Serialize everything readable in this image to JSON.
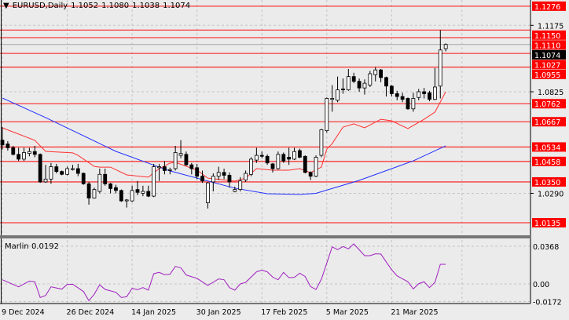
{
  "header": {
    "menu_icon": "triangle-down-icon",
    "symbol": "EURUSD,Daily",
    "open": "1.1052",
    "high": "1.1080",
    "low": "1.1038",
    "close": "1.1074"
  },
  "indicator": {
    "label": "Marlin 0.0192",
    "axis_labels": [
      "0.0368",
      "0.00",
      "-0.0172"
    ],
    "axis_values": [
      0.0368,
      0.0,
      -0.0172
    ],
    "line_color": "#a020c0",
    "points": [
      [
        0,
        0.0041
      ],
      [
        3,
        -0.0028
      ],
      [
        5,
        0.0028
      ],
      [
        6,
        0.0021
      ],
      [
        7,
        -0.0133
      ],
      [
        8,
        -0.0113
      ],
      [
        9,
        -0.0028
      ],
      [
        11,
        -0.0051
      ],
      [
        12,
        -0.0005
      ],
      [
        13,
        -0.0003
      ],
      [
        15,
        -0.0074
      ],
      [
        16,
        -0.0164
      ],
      [
        17,
        -0.01
      ],
      [
        18,
        -0.0008
      ],
      [
        19,
        -0.0054
      ],
      [
        21,
        -0.0082
      ],
      [
        22,
        -0.0133
      ],
      [
        23,
        -0.0125
      ],
      [
        24,
        -0.0043
      ],
      [
        25,
        -0.0056
      ],
      [
        26,
        -0.0036
      ],
      [
        27,
        -0.0061
      ],
      [
        28,
        0.01
      ],
      [
        29,
        0.0113
      ],
      [
        30,
        0.009
      ],
      [
        31,
        0.0095
      ],
      [
        32,
        0.0171
      ],
      [
        33,
        0.0158
      ],
      [
        34,
        0.0087
      ],
      [
        36,
        0.0054
      ],
      [
        38,
        -0.0015
      ],
      [
        40,
        0.0049
      ],
      [
        41,
        0.0041
      ],
      [
        42,
        -0.0036
      ],
      [
        43,
        -0.0061
      ],
      [
        44,
        0.0
      ],
      [
        45,
        0.0015
      ],
      [
        47,
        0.0118
      ],
      [
        48,
        0.0135
      ],
      [
        49,
        0.0118
      ],
      [
        50,
        0.0066
      ],
      [
        51,
        0.0041
      ],
      [
        52,
        0.0113
      ],
      [
        53,
        0.0061
      ],
      [
        54,
        0.0064
      ],
      [
        55,
        0.0105
      ],
      [
        56,
        0.0072
      ],
      [
        57,
        -0.0026
      ],
      [
        58,
        -0.0054
      ],
      [
        59,
        0.0046
      ],
      [
        61,
        0.0363
      ],
      [
        62,
        0.0335
      ],
      [
        63,
        0.0366
      ],
      [
        64,
        0.0343
      ],
      [
        65,
        0.0391
      ],
      [
        67,
        0.0276
      ],
      [
        68,
        0.0276
      ],
      [
        69,
        0.0294
      ],
      [
        70,
        0.0292
      ],
      [
        72,
        0.0138
      ],
      [
        73,
        0.0079
      ],
      [
        75,
        0.0021
      ],
      [
        76,
        -0.0049
      ],
      [
        77,
        0.0002
      ],
      [
        78,
        0.0021
      ],
      [
        79,
        -0.0036
      ],
      [
        80,
        0.0015
      ],
      [
        81,
        0.0192
      ],
      [
        82,
        0.0192
      ]
    ]
  },
  "chart_data": {
    "type": "candlestick",
    "symbol": "EURUSD",
    "timeframe": "Daily",
    "ylim": [
      1.0095,
      1.13
    ],
    "grid": true,
    "date_labels": [
      "9 Dec 2024",
      "26 Dec 2024",
      "14 Jan 2025",
      "30 Jan 2025",
      "17 Feb 2025",
      "5 Mar 2025",
      "21 Mar 2025"
    ],
    "date_label_bars": [
      0,
      12,
      24,
      36,
      48,
      60,
      72
    ],
    "price_ticks": [
      "1.1175",
      "1.0825",
      "1.0290"
    ],
    "price_tick_values": [
      1.1175,
      1.0825,
      1.029
    ],
    "current_price": {
      "label": "1.1074",
      "value": 1.1074,
      "color": "#000000"
    },
    "levels": [
      {
        "label": "1.1276",
        "value": 1.1276
      },
      {
        "label": "1.1150",
        "value": 1.115
      },
      {
        "label": "1.1110",
        "value": 1.111
      },
      {
        "label": "1.1027",
        "value": 1.1027
      },
      {
        "label": "1.0955",
        "value": 1.0955
      },
      {
        "label": "1.0762",
        "value": 1.0762
      },
      {
        "label": "1.0667",
        "value": 1.0667
      },
      {
        "label": "1.0534",
        "value": 1.0534
      },
      {
        "label": "1.0458",
        "value": 1.0458
      },
      {
        "label": "1.0350",
        "value": 1.035
      },
      {
        "label": "1.0135",
        "value": 1.0135
      }
    ],
    "level_color": "#ff0000",
    "candles_ohlc": [
      [
        1.057,
        1.064,
        1.052,
        1.0545
      ],
      [
        1.055,
        1.0565,
        1.0515,
        1.053
      ],
      [
        1.053,
        1.054,
        1.049,
        1.0495
      ],
      [
        1.0495,
        1.053,
        1.046,
        1.047
      ],
      [
        1.047,
        1.053,
        1.046,
        1.0505
      ],
      [
        1.05,
        1.053,
        1.0485,
        1.051
      ],
      [
        1.051,
        1.054,
        1.048,
        1.0495
      ],
      [
        1.0495,
        1.05,
        1.0345,
        1.035
      ],
      [
        1.035,
        1.044,
        1.0345,
        1.0365
      ],
      [
        1.0365,
        1.045,
        1.034,
        1.043
      ],
      [
        1.043,
        1.0445,
        1.0395,
        1.0405
      ],
      [
        1.0405,
        1.041,
        1.0385,
        1.039
      ],
      [
        1.039,
        1.043,
        1.0385,
        1.042
      ],
      [
        1.0415,
        1.044,
        1.041,
        1.042
      ],
      [
        1.042,
        1.0445,
        1.038,
        1.0395
      ],
      [
        1.0395,
        1.04,
        1.0335,
        1.034
      ],
      [
        1.034,
        1.035,
        1.023,
        1.0265
      ],
      [
        1.0265,
        1.032,
        1.0262,
        1.031
      ],
      [
        1.03,
        1.042,
        1.029,
        1.039
      ],
      [
        1.039,
        1.042,
        1.033,
        1.034
      ],
      [
        1.034,
        1.0345,
        1.029,
        1.0315
      ],
      [
        1.032,
        1.0335,
        1.029,
        1.0305
      ],
      [
        1.0305,
        1.031,
        1.0245,
        1.025
      ],
      [
        1.025,
        1.026,
        1.0215,
        1.0255
      ],
      [
        1.025,
        1.033,
        1.0245,
        1.0305
      ],
      [
        1.031,
        1.0355,
        1.028,
        1.0295
      ],
      [
        1.029,
        1.033,
        1.0275,
        1.03
      ],
      [
        1.03,
        1.033,
        1.027,
        1.0275
      ],
      [
        1.0275,
        1.0445,
        1.027,
        1.043
      ],
      [
        1.0425,
        1.0445,
        1.0355,
        1.043
      ],
      [
        1.043,
        1.046,
        1.039,
        1.041
      ],
      [
        1.041,
        1.0425,
        1.039,
        1.0415
      ],
      [
        1.042,
        1.054,
        1.041,
        1.0505
      ],
      [
        1.049,
        1.057,
        1.0475,
        1.05
      ],
      [
        1.0495,
        1.051,
        1.0435,
        1.044
      ],
      [
        1.044,
        1.045,
        1.039,
        1.042
      ],
      [
        1.0425,
        1.0445,
        1.0365,
        1.038
      ],
      [
        1.038,
        1.041,
        1.0345,
        1.0355
      ],
      [
        1.024,
        1.035,
        1.021,
        1.0345
      ],
      [
        1.035,
        1.0395,
        1.03,
        1.038
      ],
      [
        1.038,
        1.043,
        1.036,
        1.04
      ],
      [
        1.04,
        1.042,
        1.0365,
        1.0385
      ],
      [
        1.0385,
        1.04,
        1.032,
        1.035
      ],
      [
        1.03,
        1.0325,
        1.0295,
        1.031
      ],
      [
        1.031,
        1.0375,
        1.03,
        1.0355
      ],
      [
        1.036,
        1.041,
        1.035,
        1.0395
      ],
      [
        1.039,
        1.048,
        1.038,
        1.047
      ],
      [
        1.0465,
        1.053,
        1.045,
        1.049
      ],
      [
        1.049,
        1.051,
        1.0475,
        1.0485
      ],
      [
        1.0485,
        1.0495,
        1.044,
        1.045
      ],
      [
        1.0445,
        1.045,
        1.04,
        1.042
      ],
      [
        1.042,
        1.051,
        1.0415,
        1.0495
      ],
      [
        1.0495,
        1.0505,
        1.045,
        1.046
      ],
      [
        1.048,
        1.053,
        1.044,
        1.047
      ],
      [
        1.047,
        1.053,
        1.0465,
        1.051
      ],
      [
        1.0515,
        1.0525,
        1.0475,
        1.048
      ],
      [
        1.0485,
        1.049,
        1.0395,
        1.04
      ],
      [
        1.04,
        1.0405,
        1.036,
        1.038
      ],
      [
        1.038,
        1.049,
        1.0375,
        1.048
      ],
      [
        1.049,
        1.063,
        1.048,
        1.0625
      ],
      [
        1.062,
        1.0795,
        1.061,
        1.079
      ],
      [
        1.0785,
        1.086,
        1.072,
        1.079
      ],
      [
        1.078,
        1.0905,
        1.077,
        1.0835
      ],
      [
        1.084,
        1.0895,
        1.0815,
        1.0835
      ],
      [
        1.0835,
        1.0945,
        1.083,
        1.0905
      ],
      [
        1.0905,
        1.0925,
        1.087,
        1.088
      ],
      [
        1.088,
        1.0895,
        1.0825,
        1.0845
      ],
      [
        1.0845,
        1.089,
        1.081,
        1.087
      ],
      [
        1.086,
        1.0935,
        1.085,
        1.092
      ],
      [
        1.0915,
        1.0955,
        1.088,
        1.094
      ],
      [
        1.094,
        1.0945,
        1.0875,
        1.09
      ],
      [
        1.09,
        1.0905,
        1.08,
        1.0855
      ],
      [
        1.0855,
        1.086,
        1.08,
        1.0815
      ],
      [
        1.0815,
        1.083,
        1.078,
        1.08
      ],
      [
        1.08,
        1.082,
        1.077,
        1.0785
      ],
      [
        1.079,
        1.0795,
        1.073,
        1.0735
      ],
      [
        1.0735,
        1.082,
        1.072,
        1.079
      ],
      [
        1.0795,
        1.084,
        1.078,
        1.0825
      ],
      [
        1.0825,
        1.0845,
        1.079,
        1.0815
      ],
      [
        1.082,
        1.083,
        1.0775,
        1.0785
      ],
      [
        1.0785,
        1.095,
        1.078,
        1.085
      ],
      [
        1.0855,
        1.115,
        1.079,
        1.1045
      ],
      [
        1.1052,
        1.108,
        1.1038,
        1.1074
      ]
    ],
    "fast_ma": {
      "color": "#ff3030",
      "points": [
        [
          0,
          1.0635
        ],
        [
          6,
          1.0569
        ],
        [
          8,
          1.0511
        ],
        [
          13,
          1.0503
        ],
        [
          14,
          1.049
        ],
        [
          17,
          1.0432
        ],
        [
          18,
          1.0428
        ],
        [
          20,
          1.0428
        ],
        [
          23,
          1.0387
        ],
        [
          27,
          1.0375
        ],
        [
          29,
          1.042
        ],
        [
          31,
          1.0449
        ],
        [
          32,
          1.0453
        ],
        [
          36,
          1.0412
        ],
        [
          38,
          1.037
        ],
        [
          43,
          1.0354
        ],
        [
          45,
          1.037
        ],
        [
          47,
          1.042
        ],
        [
          50,
          1.0412
        ],
        [
          53,
          1.0412
        ],
        [
          55,
          1.042
        ],
        [
          57,
          1.0399
        ],
        [
          59,
          1.0428
        ],
        [
          60,
          1.0523
        ],
        [
          61,
          1.0552
        ],
        [
          63,
          1.0639
        ],
        [
          65,
          1.0656
        ],
        [
          67,
          1.0635
        ],
        [
          70,
          1.068
        ],
        [
          72,
          1.0672
        ],
        [
          75,
          1.0631
        ],
        [
          78,
          1.068
        ],
        [
          80,
          1.0718
        ],
        [
          82,
          1.0825
        ]
      ]
    },
    "slow_ma": {
      "color": "#2030ff",
      "points": [
        [
          0,
          1.0792
        ],
        [
          8,
          1.0689
        ],
        [
          21,
          1.0511
        ],
        [
          29,
          1.0428
        ],
        [
          31,
          1.0408
        ],
        [
          43,
          1.0317
        ],
        [
          49,
          1.0288
        ],
        [
          55,
          1.0284
        ],
        [
          58,
          1.029
        ],
        [
          66,
          1.0358
        ],
        [
          76,
          1.0461
        ],
        [
          82,
          1.054
        ]
      ]
    }
  }
}
